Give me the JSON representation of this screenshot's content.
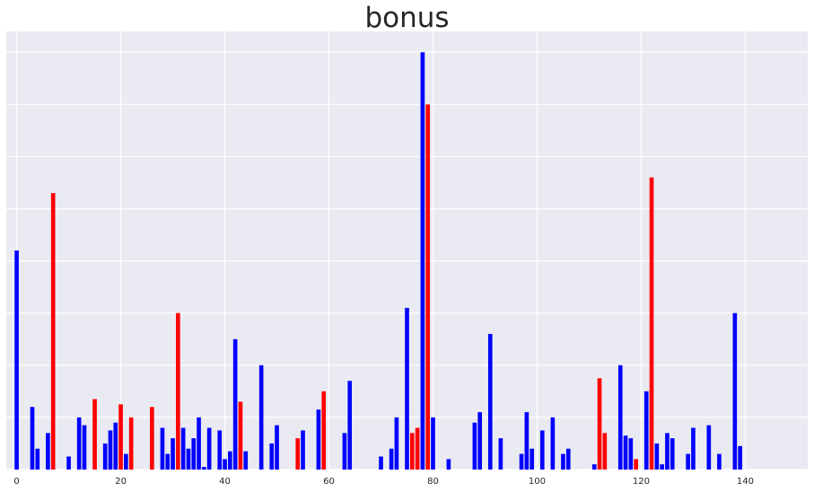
{
  "chart_data": {
    "type": "bar",
    "title": "bonus",
    "xlabel": "",
    "ylabel": "",
    "xlim": [
      -2,
      152
    ],
    "ylim": [
      0,
      84
    ],
    "grid": true,
    "x_ticks": [
      0,
      20,
      40,
      60,
      80,
      100,
      120,
      140
    ],
    "y_ticks_visible": false,
    "colors": {
      "positive": "#0000ff",
      "negative": "#ff0000",
      "background": "#eaeaf2",
      "grid": "#ffffff"
    },
    "bars": [
      {
        "x": 0,
        "value": 42,
        "color": "blue"
      },
      {
        "x": 3,
        "value": 12,
        "color": "blue"
      },
      {
        "x": 4,
        "value": 4,
        "color": "blue"
      },
      {
        "x": 6,
        "value": 7,
        "color": "blue"
      },
      {
        "x": 7,
        "value": 53,
        "color": "red"
      },
      {
        "x": 10,
        "value": 2.5,
        "color": "blue"
      },
      {
        "x": 12,
        "value": 10,
        "color": "blue"
      },
      {
        "x": 13,
        "value": 8.5,
        "color": "blue"
      },
      {
        "x": 15,
        "value": 13.5,
        "color": "red"
      },
      {
        "x": 17,
        "value": 5,
        "color": "blue"
      },
      {
        "x": 18,
        "value": 7.5,
        "color": "blue"
      },
      {
        "x": 19,
        "value": 9,
        "color": "blue"
      },
      {
        "x": 20,
        "value": 12.5,
        "color": "red"
      },
      {
        "x": 21,
        "value": 3,
        "color": "blue"
      },
      {
        "x": 22,
        "value": 10,
        "color": "red"
      },
      {
        "x": 26,
        "value": 12,
        "color": "red"
      },
      {
        "x": 28,
        "value": 8,
        "color": "blue"
      },
      {
        "x": 29,
        "value": 3,
        "color": "blue"
      },
      {
        "x": 30,
        "value": 6,
        "color": "blue"
      },
      {
        "x": 31,
        "value": 30,
        "color": "red"
      },
      {
        "x": 32,
        "value": 8,
        "color": "blue"
      },
      {
        "x": 33,
        "value": 4,
        "color": "blue"
      },
      {
        "x": 34,
        "value": 6,
        "color": "blue"
      },
      {
        "x": 35,
        "value": 10,
        "color": "blue"
      },
      {
        "x": 36,
        "value": 0.5,
        "color": "blue"
      },
      {
        "x": 37,
        "value": 8,
        "color": "blue"
      },
      {
        "x": 39,
        "value": 7.5,
        "color": "blue"
      },
      {
        "x": 40,
        "value": 2,
        "color": "blue"
      },
      {
        "x": 41,
        "value": 3.5,
        "color": "blue"
      },
      {
        "x": 42,
        "value": 25,
        "color": "blue"
      },
      {
        "x": 43,
        "value": 13,
        "color": "red"
      },
      {
        "x": 44,
        "value": 3.5,
        "color": "blue"
      },
      {
        "x": 47,
        "value": 20,
        "color": "blue"
      },
      {
        "x": 49,
        "value": 5,
        "color": "blue"
      },
      {
        "x": 50,
        "value": 8.5,
        "color": "blue"
      },
      {
        "x": 54,
        "value": 6,
        "color": "red"
      },
      {
        "x": 55,
        "value": 7.5,
        "color": "blue"
      },
      {
        "x": 58,
        "value": 11.5,
        "color": "blue"
      },
      {
        "x": 59,
        "value": 15,
        "color": "red"
      },
      {
        "x": 63,
        "value": 7,
        "color": "blue"
      },
      {
        "x": 64,
        "value": 17,
        "color": "blue"
      },
      {
        "x": 70,
        "value": 2.5,
        "color": "blue"
      },
      {
        "x": 72,
        "value": 4,
        "color": "blue"
      },
      {
        "x": 73,
        "value": 10,
        "color": "blue"
      },
      {
        "x": 75,
        "value": 31,
        "color": "blue"
      },
      {
        "x": 76,
        "value": 7,
        "color": "red"
      },
      {
        "x": 77,
        "value": 8,
        "color": "red"
      },
      {
        "x": 78,
        "value": 80,
        "color": "blue"
      },
      {
        "x": 79,
        "value": 70,
        "color": "red"
      },
      {
        "x": 80,
        "value": 10,
        "color": "blue"
      },
      {
        "x": 83,
        "value": 2,
        "color": "blue"
      },
      {
        "x": 88,
        "value": 9,
        "color": "blue"
      },
      {
        "x": 89,
        "value": 11,
        "color": "blue"
      },
      {
        "x": 91,
        "value": 26,
        "color": "blue"
      },
      {
        "x": 93,
        "value": 6,
        "color": "blue"
      },
      {
        "x": 97,
        "value": 3,
        "color": "blue"
      },
      {
        "x": 98,
        "value": 11,
        "color": "blue"
      },
      {
        "x": 99,
        "value": 4,
        "color": "blue"
      },
      {
        "x": 101,
        "value": 7.5,
        "color": "blue"
      },
      {
        "x": 103,
        "value": 10,
        "color": "blue"
      },
      {
        "x": 105,
        "value": 3,
        "color": "blue"
      },
      {
        "x": 106,
        "value": 4,
        "color": "blue"
      },
      {
        "x": 111,
        "value": 1,
        "color": "blue"
      },
      {
        "x": 112,
        "value": 17.5,
        "color": "red"
      },
      {
        "x": 113,
        "value": 7,
        "color": "red"
      },
      {
        "x": 116,
        "value": 20,
        "color": "blue"
      },
      {
        "x": 117,
        "value": 6.5,
        "color": "blue"
      },
      {
        "x": 118,
        "value": 6,
        "color": "blue"
      },
      {
        "x": 119,
        "value": 2,
        "color": "red"
      },
      {
        "x": 121,
        "value": 15,
        "color": "blue"
      },
      {
        "x": 122,
        "value": 56,
        "color": "red"
      },
      {
        "x": 123,
        "value": 5,
        "color": "blue"
      },
      {
        "x": 124,
        "value": 1,
        "color": "blue"
      },
      {
        "x": 125,
        "value": 7,
        "color": "blue"
      },
      {
        "x": 126,
        "value": 6,
        "color": "blue"
      },
      {
        "x": 129,
        "value": 3,
        "color": "blue"
      },
      {
        "x": 130,
        "value": 8,
        "color": "blue"
      },
      {
        "x": 133,
        "value": 8.5,
        "color": "blue"
      },
      {
        "x": 135,
        "value": 3,
        "color": "blue"
      },
      {
        "x": 138,
        "value": 30,
        "color": "blue"
      },
      {
        "x": 139,
        "value": 4.5,
        "color": "blue"
      }
    ]
  }
}
